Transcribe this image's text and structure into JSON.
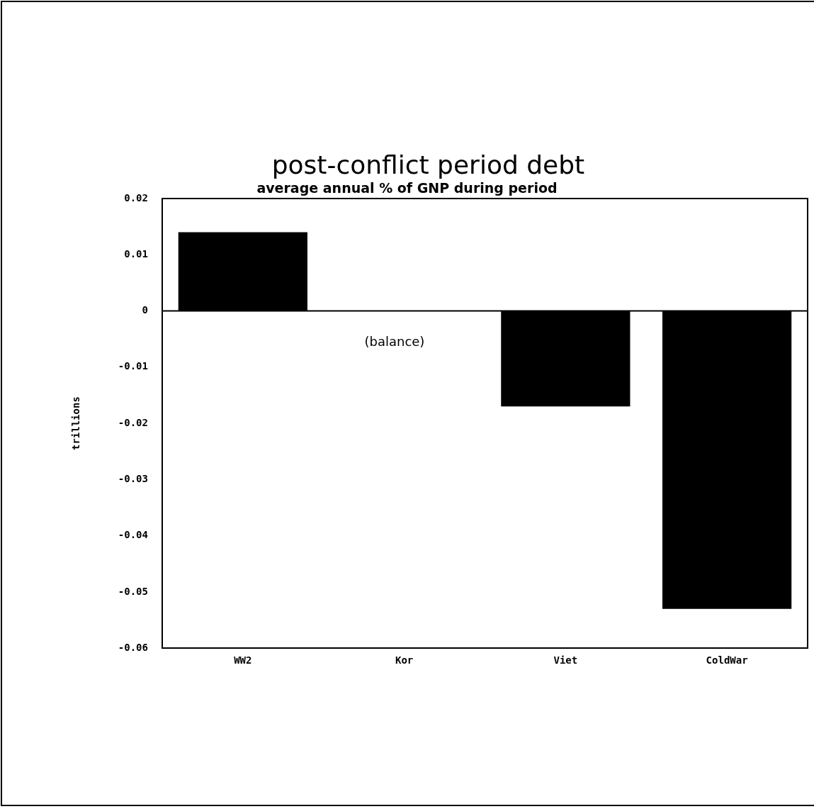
{
  "chart_data": {
    "type": "bar",
    "title": "post-conflict period debt",
    "subtitle": "average annual % of GNP during period",
    "ylabel": "trillions",
    "categories": [
      "WW2",
      "Kor",
      "Viet",
      "ColdWar"
    ],
    "values": [
      0.014,
      0,
      -0.017,
      -0.053
    ],
    "color": "#000000",
    "ylim": [
      -0.06,
      0.02
    ],
    "yticks": [
      -0.06,
      -0.05,
      -0.04,
      -0.03,
      -0.02,
      -0.01,
      0,
      0.01,
      0.02
    ],
    "annotations": [
      "(balance)"
    ],
    "ref_lines": [
      {
        "axis": "y",
        "value": 0,
        "color": "#000000"
      }
    ],
    "grid": false,
    "legend": false
  }
}
